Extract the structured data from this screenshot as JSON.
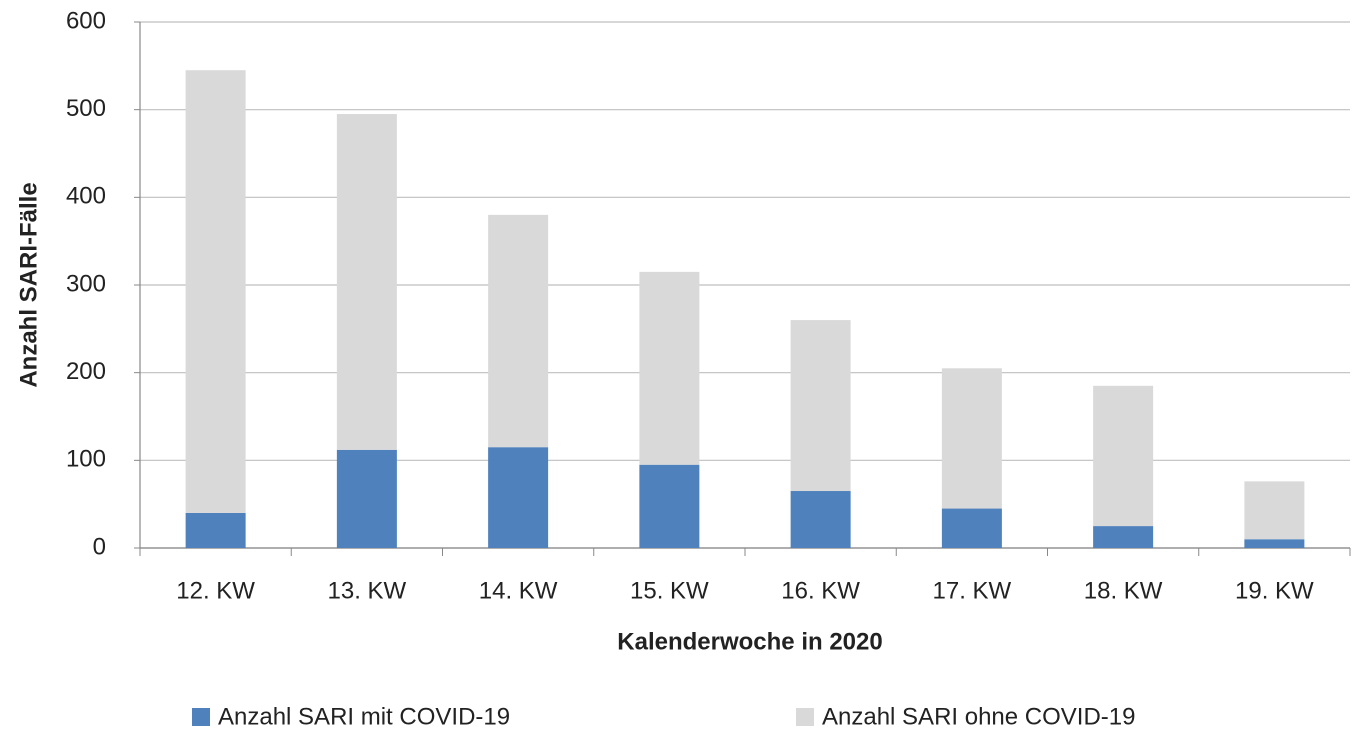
{
  "chart_data": {
    "type": "stacked_bar",
    "x_label": "Kalenderwoche in 2020",
    "y_label": "Anzahl SARI-Fälle",
    "categories": [
      "12. KW",
      "13. KW",
      "14. KW",
      "15. KW",
      "16. KW",
      "17. KW",
      "18. KW",
      "19. KW"
    ],
    "series": [
      {
        "name": "Anzahl SARI mit COVID-19",
        "color": "#4f81bd",
        "values": [
          40,
          112,
          115,
          95,
          65,
          45,
          25,
          10
        ]
      },
      {
        "name": "Anzahl SARI ohne COVID-19",
        "color": "#d9d9d9",
        "values": [
          505,
          383,
          265,
          220,
          195,
          160,
          160,
          66
        ]
      }
    ],
    "ylim": [
      0,
      600
    ],
    "yticks": [
      0,
      100,
      200,
      300,
      400,
      500,
      600
    ],
    "grid": true
  }
}
